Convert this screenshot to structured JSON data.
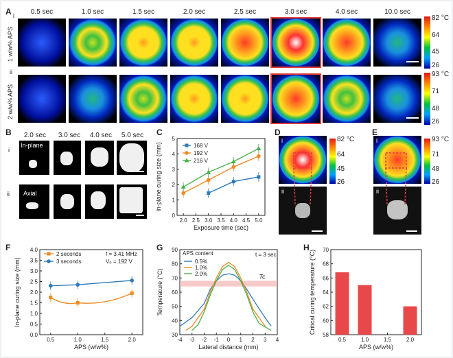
{
  "panel_a": {
    "letter": "A",
    "times": [
      "0.5 sec",
      "1.0 sec",
      "1.5 sec",
      "2.0 sec",
      "2.5 sec",
      "3.0 sec",
      "4.0 sec",
      "10.0 sec"
    ],
    "row_i": {
      "roman": "i",
      "label": "1 w/w% APS",
      "colorbar": [
        "82 °C",
        "64",
        "45",
        "26"
      ]
    },
    "row_ii": {
      "roman": "ii",
      "label": "2 w/w% APS",
      "colorbar": [
        "93 °C",
        "71",
        "48",
        "26"
      ]
    }
  },
  "panel_b": {
    "letter": "B",
    "times": [
      "2.0 sec",
      "3.0 sec",
      "4.0 sec",
      "5.0 sec"
    ],
    "row_i": {
      "roman": "i",
      "label": "In-plane"
    },
    "row_ii": {
      "roman": "ii",
      "label": "Axial"
    }
  },
  "panel_d": {
    "letter": "D",
    "roman_top": "i",
    "roman_bottom": "ii",
    "colorbar": [
      "82 °C",
      "64",
      "45",
      "26"
    ]
  },
  "panel_e": {
    "letter": "E",
    "roman_top": "i",
    "roman_bottom": "ii",
    "colorbar": [
      "93 °C",
      "71",
      "48",
      "26"
    ]
  },
  "chart_data": [
    {
      "panel": "C",
      "type": "line",
      "xlabel": "Exposure time (sec)",
      "ylabel": "In-plane curing size (mm)",
      "xlim": [
        1.75,
        5.25
      ],
      "ylim": [
        0,
        5
      ],
      "xticks": [
        "2.0",
        "2.5",
        "3.0",
        "3.5",
        "4.0",
        "4.5",
        "5.0"
      ],
      "yticks": [
        "0",
        "1",
        "2",
        "3",
        "4",
        "5"
      ],
      "legend_position": "top-left",
      "series": [
        {
          "name": "168 V",
          "color": "#2f7ab9",
          "marker": "square",
          "x": [
            3.0,
            4.0,
            5.0
          ],
          "y": [
            1.45,
            2.2,
            2.5
          ]
        },
        {
          "name": "192 V",
          "color": "#ef8a24",
          "marker": "circle",
          "x": [
            2.0,
            3.0,
            4.0,
            5.0
          ],
          "y": [
            1.45,
            2.3,
            3.15,
            3.85
          ]
        },
        {
          "name": "216 V",
          "color": "#49b04b",
          "marker": "triangle",
          "x": [
            2.0,
            3.0,
            4.0,
            5.0
          ],
          "y": [
            1.85,
            2.8,
            3.5,
            4.35
          ]
        }
      ]
    },
    {
      "panel": "F",
      "type": "line",
      "xlabel": "APS (w/w%)",
      "ylabel": "In-plane curing size (mm)",
      "xlim": [
        0.3,
        2.2
      ],
      "ylim": [
        0.0,
        4.0
      ],
      "xticks": [
        "0.5",
        "1.0",
        "1.5",
        "2.0"
      ],
      "yticks": [
        "0.0",
        "0.5",
        "1.0",
        "1.5",
        "2.0",
        "2.5",
        "3.0",
        "3.5",
        "4.0"
      ],
      "annotation_f": "f = 3.41 MHz",
      "annotation_v": "Vₚ = 192 V",
      "legend_position": "top-left",
      "series": [
        {
          "name": "2 seconds",
          "color": "#ef8a24",
          "marker": "square",
          "x": [
            0.5,
            1.0,
            2.0
          ],
          "y": [
            1.75,
            1.5,
            1.95
          ]
        },
        {
          "name": "3 seconds",
          "color": "#2f7ab9",
          "marker": "circle",
          "x": [
            0.5,
            1.0,
            2.0
          ],
          "y": [
            2.3,
            2.35,
            2.55
          ]
        }
      ]
    },
    {
      "panel": "G",
      "type": "line",
      "xlabel": "Lateral distance (mm)",
      "ylabel": "Temperature (°C)",
      "xlim": [
        -4,
        4
      ],
      "ylim": [
        30,
        90
      ],
      "xticks": [
        "-4",
        "-3",
        "-2",
        "-1",
        "0",
        "1",
        "2",
        "3",
        "4"
      ],
      "yticks": [
        "30",
        "40",
        "50",
        "60",
        "70",
        "80",
        "90"
      ],
      "legend_title": "APS content",
      "annotation_t": "t = 3 sec",
      "annotation_tc": "Tc",
      "band": [
        64,
        68
      ],
      "series": [
        {
          "name": "0.5%",
          "color": "#2f7ab9",
          "x": [
            -4,
            -3,
            -2,
            -1.5,
            -1,
            -0.5,
            0,
            0.5,
            1,
            1.5,
            2,
            3,
            3.5
          ],
          "y": [
            36,
            42,
            52,
            62,
            68,
            72,
            73,
            72,
            68,
            62,
            55,
            42,
            36
          ]
        },
        {
          "name": "1.0%",
          "color": "#ef8a24",
          "x": [
            -3.5,
            -3,
            -2,
            -1.5,
            -1,
            -0.5,
            0,
            0.5,
            1,
            1.5,
            2,
            3
          ],
          "y": [
            33,
            36,
            48,
            60,
            70,
            78,
            81,
            78,
            70,
            60,
            48,
            36
          ]
        },
        {
          "name": "2.0%",
          "color": "#49b04b",
          "x": [
            -3,
            -2.5,
            -2,
            -1.5,
            -1,
            -0.5,
            0,
            0.5,
            1,
            1.5,
            2,
            2.5,
            3.5
          ],
          "y": [
            33,
            37,
            46,
            58,
            68,
            76,
            79,
            76,
            68,
            58,
            46,
            38,
            33
          ]
        }
      ]
    },
    {
      "panel": "H",
      "type": "bar",
      "xlabel": "APS (w/w%)",
      "ylabel": "Critical curing temperature (°C)",
      "ylim": [
        58,
        70
      ],
      "yticks": [
        "58",
        "60",
        "62",
        "64",
        "66",
        "68",
        "70"
      ],
      "xticks": [
        "0.5",
        "1.0",
        "1.5",
        "2.0"
      ],
      "categories": [
        0.5,
        1.0,
        2.0
      ],
      "values": [
        66.8,
        65.0,
        62.0
      ],
      "color": "#e8484a"
    }
  ],
  "panel_c_letter": "C",
  "panel_f_letter": "F",
  "panel_g_letter": "G",
  "panel_h_letter": "H"
}
